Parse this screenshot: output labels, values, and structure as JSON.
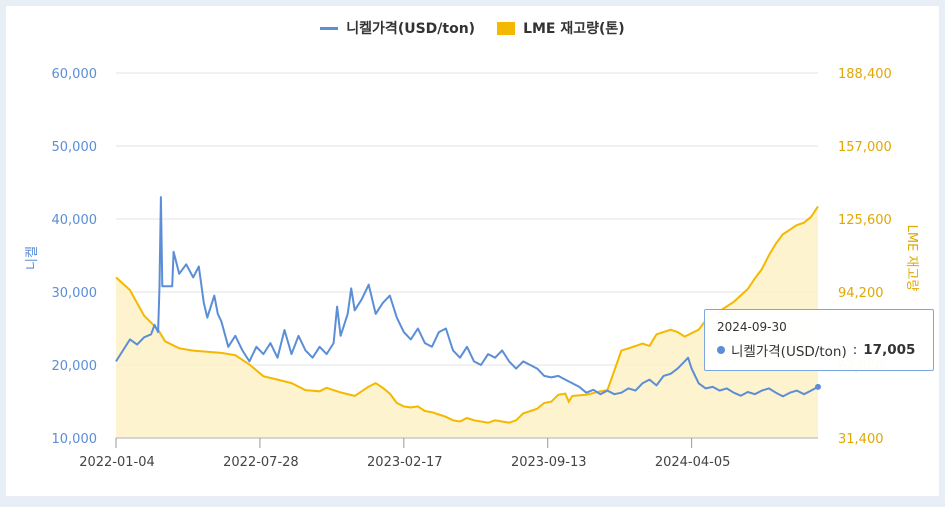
{
  "chart_data": {
    "type": "line",
    "legend": [
      {
        "name": "니켈가격(USD/ton)",
        "style": "line",
        "color": "#5b8ed6"
      },
      {
        "name": "LME 재고량(톤)",
        "style": "area",
        "color": "#f5b800"
      }
    ],
    "y_left": {
      "label": "니켈",
      "min": 10000,
      "max": 60000,
      "ticks": [
        "10,000",
        "20,000",
        "30,000",
        "40,000",
        "50,000",
        "60,000"
      ],
      "tick_values": [
        10000,
        20000,
        30000,
        40000,
        50000,
        60000
      ]
    },
    "y_right": {
      "label": "LME 재고량",
      "min": 31400,
      "max": 188400,
      "ticks": [
        "31,400",
        "62,800",
        "94,200",
        "125,600",
        "157,000",
        "188,400"
      ],
      "tick_values": [
        31400,
        62800,
        94200,
        125600,
        157000,
        188400
      ]
    },
    "x_ticks": [
      "2022-01-04",
      "2022-07-28",
      "2023-02-17",
      "2023-09-13",
      "2024-04-05"
    ],
    "x_tick_pos": [
      0,
      0.205,
      0.41,
      0.615,
      0.82
    ],
    "series": [
      {
        "name": "니켈가격(USD/ton)",
        "color": "#5b8ed6",
        "points": [
          [
            0,
            20500
          ],
          [
            0.01,
            22000
          ],
          [
            0.02,
            23500
          ],
          [
            0.03,
            22800
          ],
          [
            0.04,
            23800
          ],
          [
            0.05,
            24200
          ],
          [
            0.055,
            25500
          ],
          [
            0.06,
            24500
          ],
          [
            0.062,
            30800
          ],
          [
            0.064,
            43000
          ],
          [
            0.066,
            30800
          ],
          [
            0.08,
            30800
          ],
          [
            0.082,
            35500
          ],
          [
            0.09,
            32500
          ],
          [
            0.1,
            33800
          ],
          [
            0.11,
            32000
          ],
          [
            0.118,
            33500
          ],
          [
            0.125,
            28500
          ],
          [
            0.13,
            26500
          ],
          [
            0.14,
            29500
          ],
          [
            0.145,
            27000
          ],
          [
            0.15,
            26000
          ],
          [
            0.16,
            22500
          ],
          [
            0.17,
            24000
          ],
          [
            0.18,
            22000
          ],
          [
            0.19,
            20500
          ],
          [
            0.2,
            22500
          ],
          [
            0.21,
            21500
          ],
          [
            0.22,
            23000
          ],
          [
            0.23,
            21000
          ],
          [
            0.24,
            24800
          ],
          [
            0.25,
            21500
          ],
          [
            0.26,
            24000
          ],
          [
            0.27,
            22000
          ],
          [
            0.28,
            21000
          ],
          [
            0.29,
            22500
          ],
          [
            0.3,
            21500
          ],
          [
            0.31,
            23000
          ],
          [
            0.315,
            28000
          ],
          [
            0.32,
            24000
          ],
          [
            0.33,
            27000
          ],
          [
            0.335,
            30500
          ],
          [
            0.34,
            27500
          ],
          [
            0.35,
            29000
          ],
          [
            0.36,
            31000
          ],
          [
            0.37,
            27000
          ],
          [
            0.38,
            28500
          ],
          [
            0.39,
            29500
          ],
          [
            0.4,
            26500
          ],
          [
            0.41,
            24500
          ],
          [
            0.42,
            23500
          ],
          [
            0.43,
            25000
          ],
          [
            0.44,
            23000
          ],
          [
            0.45,
            22500
          ],
          [
            0.46,
            24500
          ],
          [
            0.47,
            25000
          ],
          [
            0.48,
            22000
          ],
          [
            0.49,
            21000
          ],
          [
            0.5,
            22500
          ],
          [
            0.51,
            20500
          ],
          [
            0.52,
            20000
          ],
          [
            0.53,
            21500
          ],
          [
            0.54,
            21000
          ],
          [
            0.55,
            22000
          ],
          [
            0.56,
            20500
          ],
          [
            0.57,
            19500
          ],
          [
            0.58,
            20500
          ],
          [
            0.59,
            20000
          ],
          [
            0.6,
            19500
          ],
          [
            0.61,
            18500
          ],
          [
            0.62,
            18300
          ],
          [
            0.63,
            18500
          ],
          [
            0.64,
            18000
          ],
          [
            0.65,
            17500
          ],
          [
            0.66,
            17000
          ],
          [
            0.67,
            16200
          ],
          [
            0.68,
            16600
          ],
          [
            0.69,
            16000
          ],
          [
            0.7,
            16500
          ],
          [
            0.71,
            16000
          ],
          [
            0.72,
            16200
          ],
          [
            0.73,
            16800
          ],
          [
            0.74,
            16500
          ],
          [
            0.75,
            17500
          ],
          [
            0.76,
            18000
          ],
          [
            0.77,
            17200
          ],
          [
            0.78,
            18500
          ],
          [
            0.79,
            18800
          ],
          [
            0.8,
            19500
          ],
          [
            0.81,
            20500
          ],
          [
            0.815,
            21000
          ],
          [
            0.82,
            19500
          ],
          [
            0.83,
            17500
          ],
          [
            0.84,
            16800
          ],
          [
            0.85,
            17000
          ],
          [
            0.86,
            16500
          ],
          [
            0.87,
            16800
          ],
          [
            0.88,
            16200
          ],
          [
            0.89,
            15800
          ],
          [
            0.9,
            16300
          ],
          [
            0.91,
            16000
          ],
          [
            0.92,
            16500
          ],
          [
            0.93,
            16800
          ],
          [
            0.94,
            16200
          ],
          [
            0.95,
            15700
          ],
          [
            0.96,
            16200
          ],
          [
            0.97,
            16500
          ],
          [
            0.98,
            16000
          ],
          [
            0.99,
            16500
          ],
          [
            1.0,
            17005
          ]
        ]
      },
      {
        "name": "LME 재고량(톤)",
        "color": "#f5b800",
        "points": [
          [
            0,
            100500
          ],
          [
            0.02,
            95000
          ],
          [
            0.04,
            84000
          ],
          [
            0.06,
            78000
          ],
          [
            0.07,
            73000
          ],
          [
            0.09,
            70000
          ],
          [
            0.11,
            69000
          ],
          [
            0.13,
            68500
          ],
          [
            0.15,
            68000
          ],
          [
            0.17,
            67000
          ],
          [
            0.19,
            63000
          ],
          [
            0.21,
            58000
          ],
          [
            0.23,
            56500
          ],
          [
            0.25,
            55000
          ],
          [
            0.27,
            52000
          ],
          [
            0.29,
            51500
          ],
          [
            0.3,
            53000
          ],
          [
            0.32,
            51000
          ],
          [
            0.34,
            49500
          ],
          [
            0.36,
            53500
          ],
          [
            0.37,
            55000
          ],
          [
            0.38,
            53000
          ],
          [
            0.39,
            50500
          ],
          [
            0.4,
            46500
          ],
          [
            0.41,
            45000
          ],
          [
            0.42,
            44500
          ],
          [
            0.43,
            45000
          ],
          [
            0.44,
            43000
          ],
          [
            0.45,
            42500
          ],
          [
            0.46,
            41500
          ],
          [
            0.47,
            40500
          ],
          [
            0.48,
            39000
          ],
          [
            0.49,
            38500
          ],
          [
            0.5,
            40000
          ],
          [
            0.51,
            39000
          ],
          [
            0.52,
            38500
          ],
          [
            0.53,
            38000
          ],
          [
            0.54,
            39000
          ],
          [
            0.55,
            38500
          ],
          [
            0.56,
            38000
          ],
          [
            0.57,
            39000
          ],
          [
            0.58,
            42000
          ],
          [
            0.6,
            44000
          ],
          [
            0.61,
            46500
          ],
          [
            0.62,
            47000
          ],
          [
            0.63,
            50000
          ],
          [
            0.64,
            50500
          ],
          [
            0.645,
            47000
          ],
          [
            0.65,
            49500
          ],
          [
            0.67,
            50000
          ],
          [
            0.69,
            51500
          ],
          [
            0.7,
            52000
          ],
          [
            0.72,
            69000
          ],
          [
            0.73,
            70000
          ],
          [
            0.75,
            72000
          ],
          [
            0.76,
            71000
          ],
          [
            0.77,
            76000
          ],
          [
            0.79,
            78000
          ],
          [
            0.8,
            77000
          ],
          [
            0.81,
            75000
          ],
          [
            0.83,
            78000
          ],
          [
            0.84,
            82000
          ],
          [
            0.86,
            86000
          ],
          [
            0.88,
            90000
          ],
          [
            0.9,
            95500
          ],
          [
            0.91,
            100000
          ],
          [
            0.92,
            104000
          ],
          [
            0.93,
            110000
          ],
          [
            0.94,
            115000
          ],
          [
            0.95,
            119000
          ],
          [
            0.96,
            121000
          ],
          [
            0.97,
            123000
          ],
          [
            0.98,
            124000
          ],
          [
            0.99,
            126500
          ],
          [
            1.0,
            131000
          ]
        ]
      }
    ]
  },
  "tooltip": {
    "date": "2024-09-30",
    "series_label": "니켈가격(USD/ton)",
    "separator": ":",
    "value": "17,005"
  }
}
